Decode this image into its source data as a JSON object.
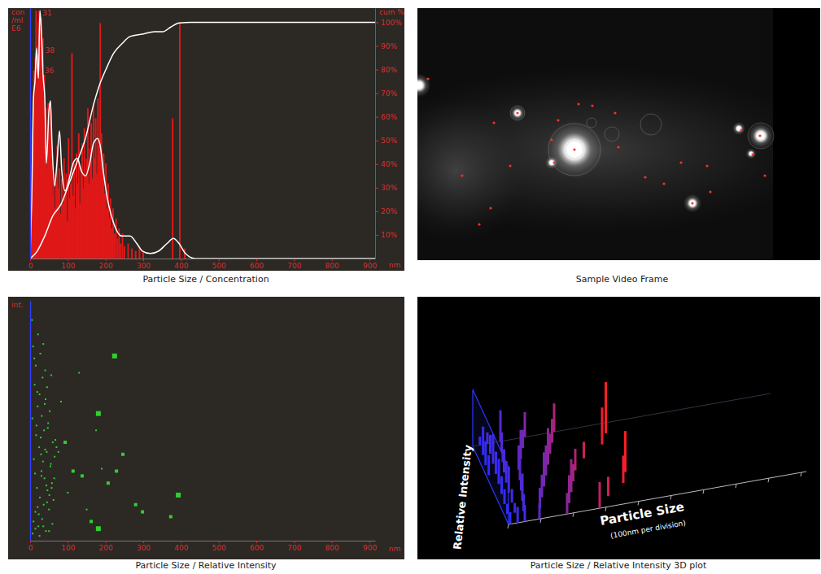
{
  "chart_data": [
    {
      "type": "bar",
      "title": "Particle Size / Concentration",
      "xlabel": "nm",
      "ylabel": [
        "con",
        "/ml",
        "E6"
      ],
      "y2label": "cum %",
      "xlim": [
        0,
        915
      ],
      "xticks": [
        0,
        100,
        200,
        300,
        400,
        500,
        600,
        700,
        800,
        900
      ],
      "ylim": [
        0,
        10
      ],
      "y2lim": [
        0,
        106
      ],
      "y2ticks": [
        {
          "value": 10,
          "label": "10%"
        },
        {
          "value": 20,
          "label": "20%"
        },
        {
          "value": 30,
          "label": "30%"
        },
        {
          "value": 40,
          "label": "40%"
        },
        {
          "value": 50,
          "label": "50%"
        },
        {
          "value": 60,
          "label": "60%"
        },
        {
          "value": 70,
          "label": "70%"
        },
        {
          "value": 80,
          "label": "80%"
        },
        {
          "value": 90,
          "label": "90%"
        },
        {
          "value": 100,
          "label": "100%"
        }
      ],
      "series": [
        {
          "type": "bar",
          "color": "#e01818",
          "x": [
            2,
            4,
            6,
            8,
            10,
            12,
            14,
            16,
            18,
            20,
            22,
            24,
            26,
            28,
            30,
            32,
            34,
            36,
            38,
            40,
            42,
            44,
            46,
            48,
            50,
            52,
            54,
            56,
            58,
            60,
            63,
            66,
            69,
            72,
            75,
            78,
            81,
            84,
            87,
            90,
            93,
            96,
            99,
            102,
            105,
            108,
            111,
            114,
            117,
            120,
            123,
            126,
            129,
            132,
            135,
            138,
            141,
            144,
            147,
            150,
            153,
            156,
            159,
            162,
            165,
            168,
            171,
            174,
            177,
            180,
            183,
            186,
            189,
            192,
            195,
            198,
            201,
            204,
            207,
            210,
            213,
            216,
            220,
            224,
            228,
            232,
            236,
            240,
            245,
            250,
            260,
            270,
            280,
            290,
            300,
            378,
            397,
            410
          ],
          "values": [
            0.8,
            1.5,
            3,
            5,
            7.5,
            6,
            8,
            9.9,
            7,
            8.5,
            9.5,
            9.9,
            9.2,
            8,
            9.6,
            7,
            8.8,
            6.5,
            7.4,
            5,
            6,
            3.5,
            4.5,
            6.2,
            5.5,
            4,
            6,
            3,
            4.2,
            2.5,
            3.4,
            2,
            3,
            4.5,
            2.8,
            3.6,
            1.8,
            3.2,
            2.2,
            4,
            2.6,
            3.4,
            1.5,
            4.8,
            2.4,
            3,
            8.2,
            2.5,
            3.8,
            2,
            4.2,
            3,
            5,
            2.2,
            3.6,
            4.6,
            2.8,
            5.2,
            3.3,
            4,
            6,
            3,
            4.4,
            5.4,
            3.2,
            6.2,
            4,
            5.6,
            3.4,
            6.4,
            4.5,
            9.4,
            5,
            3.6,
            4.2,
            2.6,
            3.8,
            2,
            3,
            1.6,
            2.4,
            1.2,
            2,
            1,
            1.6,
            0.8,
            1.2,
            0.6,
            1,
            0.5,
            0.6,
            0.4,
            0.3,
            0.5,
            0.3,
            5.6,
            9.4,
            0.4
          ]
        },
        {
          "type": "line",
          "color": "#ffffff",
          "x": [
            0,
            4,
            9,
            13,
            17,
            22,
            26,
            30,
            35,
            39,
            43,
            50,
            54,
            58,
            65,
            71,
            78,
            84,
            93,
            104,
            114,
            125,
            136,
            147,
            158,
            168,
            179,
            186,
            194,
            205,
            222,
            244,
            265,
            283,
            298,
            319,
            341,
            363,
            380,
            395,
            412,
            438,
            481,
            915
          ],
          "values": [
            0,
            2.2,
            6.4,
            7.1,
            8.4,
            7.2,
            9.9,
            9.0,
            7.2,
            6.4,
            3.8,
            5.9,
            6.3,
            4.6,
            2.9,
            3.8,
            5.1,
            3.5,
            2.7,
            3.2,
            3.8,
            4.0,
            3.5,
            3.3,
            3.8,
            4.6,
            4.8,
            4.5,
            3.5,
            2.4,
            1.4,
            0.9,
            0.9,
            0.6,
            0.3,
            0.2,
            0.3,
            0.6,
            0.8,
            0.6,
            0.2,
            0,
            0,
            0
          ]
        },
        {
          "type": "line",
          "color": "#ffffff",
          "axis": "y2",
          "x": [
            0,
            17,
            39,
            60,
            82,
            104,
            125,
            147,
            168,
            183,
            201,
            222,
            244,
            265,
            298,
            330,
            352,
            373,
            395,
            427,
            481,
            915
          ],
          "values": [
            0,
            2.7,
            9.6,
            18,
            23,
            32,
            41,
            51,
            65,
            73,
            80,
            87,
            91,
            94,
            95,
            96,
            96,
            98,
            99.7,
            100,
            100,
            100
          ]
        }
      ],
      "peak_labels": {
        "x": [
          31,
          38,
          36
        ],
        "y": [
          9.8,
          8.3,
          7.5
        ]
      }
    },
    {
      "type": "scatter",
      "title": "Particle Size / Relative Intensity",
      "xlabel": "nm",
      "ylabel": "int.",
      "xlim": [
        0,
        915
      ],
      "xticks": [
        0,
        100,
        200,
        300,
        400,
        500,
        600,
        700,
        800,
        900
      ],
      "ylim": [
        0,
        10
      ],
      "series": [
        {
          "color": "#2fd02f",
          "marker": "square",
          "x": [
            5,
            8,
            10,
            12,
            14,
            15,
            17,
            18,
            20,
            21,
            22,
            24,
            25,
            26,
            27,
            28,
            30,
            31,
            32,
            33,
            34,
            35,
            36,
            37,
            38,
            40,
            41,
            42,
            44,
            45,
            46,
            48,
            50,
            52,
            54,
            56,
            58,
            60,
            62,
            65,
            6,
            9,
            11,
            13,
            16,
            19,
            23,
            29,
            39,
            43,
            47,
            51,
            55,
            59,
            64,
            70,
            7,
            14,
            20,
            25,
            30,
            35,
            40,
            45,
            50,
            57,
            67,
            75,
            82,
            93,
            100,
            114,
            130,
            138,
            150,
            175,
            190,
            207,
            229,
            246,
            280,
            298,
            373,
            162,
            181,
            224,
            181,
            393
          ],
          "values": [
            9.2,
            8.1,
            3.4,
            6.5,
            1.2,
            7.3,
            4.8,
            2.2,
            5.6,
            8.6,
            0.6,
            3.9,
            6.1,
            1.8,
            7.8,
            4.3,
            2.9,
            5.2,
            0.9,
            6.8,
            3.3,
            8.2,
            1.5,
            4.6,
            2.6,
            7.1,
            5.9,
            0.4,
            3.7,
            6.4,
            2.1,
            4.9,
            1.3,
            5.4,
            3.1,
            6.9,
            2.4,
            4.1,
            1.7,
            3.5,
            5.1,
            0.8,
            7.6,
            2.8,
            4.4,
            6.2,
            1.1,
            3.6,
            5.7,
            2.3,
            4.7,
            1.9,
            3.2,
            0.7,
            2.6,
            3.9,
            0.3,
            0.5,
            1.4,
            0.2,
            2.7,
            0.6,
            3.8,
            1.6,
            0.4,
            2.2,
            4.2,
            3.7,
            5.8,
            4.1,
            2.0,
            2.9,
            7.0,
            2.7,
            1.3,
            4.6,
            3.0,
            2.4,
            2.9,
            3.6,
            1.5,
            1.2,
            1.0,
            0.8,
            5.3,
            7.7,
            0.5,
            1.9
          ],
          "sizes": [
            1,
            1,
            1,
            1,
            1,
            1,
            1,
            1,
            1,
            1,
            1,
            1,
            1,
            1,
            1,
            1,
            1,
            1,
            1,
            1,
            1,
            1,
            1,
            1,
            1,
            1,
            1,
            1,
            1,
            1,
            1,
            1,
            1,
            1,
            1,
            1,
            1,
            1,
            1,
            1,
            1,
            1,
            1,
            1,
            1,
            1,
            1,
            1,
            1,
            1,
            1,
            1,
            1,
            1,
            1,
            1,
            1,
            1,
            1,
            1,
            1,
            1,
            1,
            1,
            1,
            1,
            1,
            1,
            1,
            2,
            1,
            2,
            1,
            2,
            1,
            1,
            1,
            2,
            2,
            2,
            2,
            2,
            2,
            2,
            3,
            3,
            3,
            3
          ]
        }
      ]
    },
    {
      "type": "bar3d",
      "title": "Particle Size / Relative Intensity 3D plot",
      "xlabel": "Particle Size",
      "xlabel_note": "(100nm per division)",
      "ylabel": "Relative Intensity",
      "xlim": [
        0,
        915
      ],
      "xticks": [
        0,
        100,
        200,
        300,
        400,
        500,
        600,
        700,
        800,
        900
      ],
      "ylim": [
        0,
        10
      ],
      "tick_labels": false,
      "series": [
        {
          "x": [
            5,
            8,
            10,
            12,
            15,
            18,
            20,
            22,
            25,
            28,
            30,
            33,
            35,
            38,
            40,
            42,
            45,
            48,
            50,
            55,
            60,
            65,
            70,
            75,
            80,
            85,
            90,
            95,
            100,
            110,
            120,
            130,
            140,
            150,
            160,
            170,
            180,
            190,
            200,
            210,
            220,
            230,
            240,
            250,
            260,
            280,
            300,
            320,
            370,
            380,
            395,
            400
          ],
          "values": [
            2.1,
            3.5,
            1.8,
            4.2,
            2.6,
            5.0,
            3.1,
            1.5,
            4.4,
            2.8,
            3.9,
            1.7,
            5.2,
            2.4,
            3.3,
            4.6,
            2.0,
            3.8,
            2.9,
            4.1,
            3.0,
            2.2,
            4.8,
            3.4,
            2.6,
            5.5,
            3.9,
            2.7,
            4.3,
            3.6,
            5.1,
            4.0,
            3.2,
            6.0,
            4.4,
            5.3,
            3.7,
            6.4,
            4.9,
            3.5,
            5.8,
            4.2,
            3.0,
            5.0,
            3.8,
            4.6,
            2.9,
            3.4,
            6.5,
            4.8,
            9.0,
            7.2
          ]
        }
      ]
    }
  ],
  "video_frame": {
    "title": "Sample Video Frame"
  }
}
